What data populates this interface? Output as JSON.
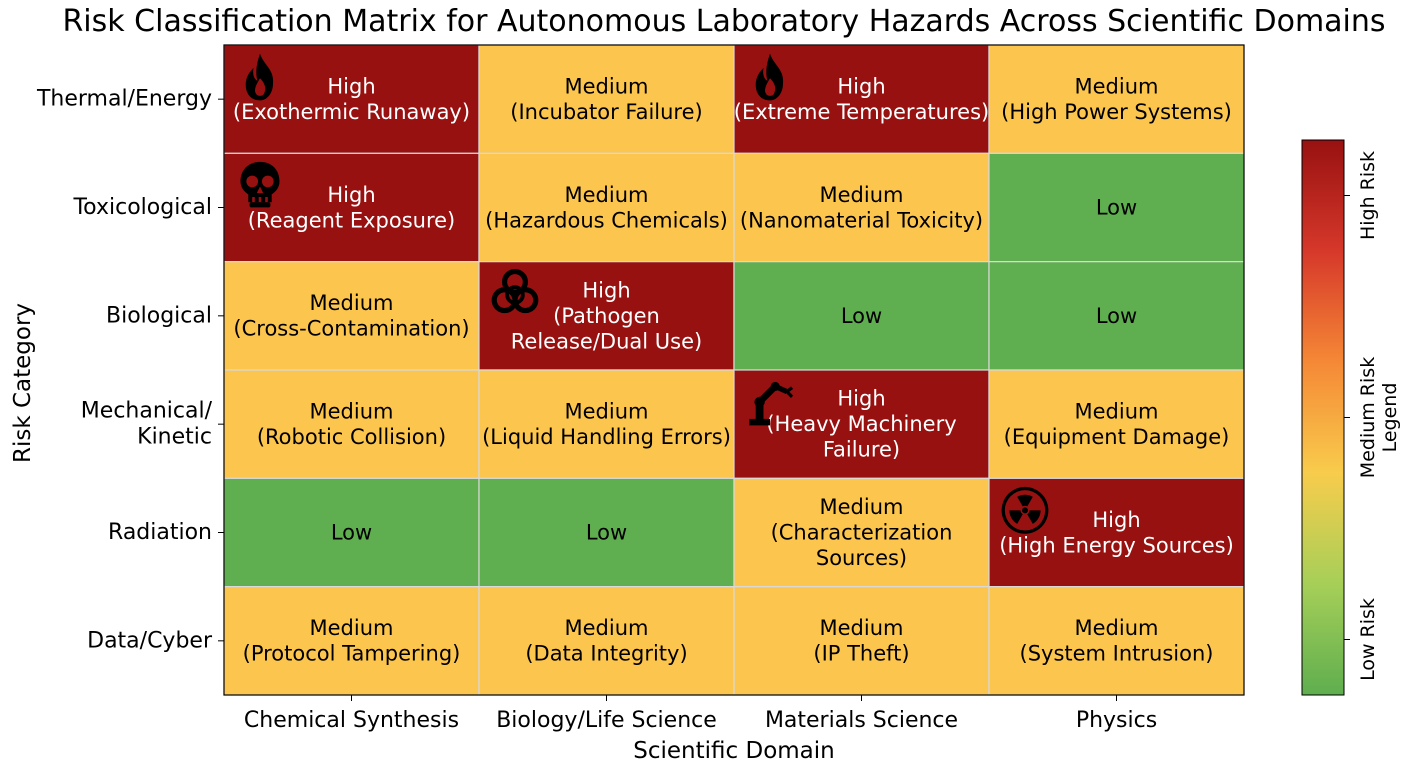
{
  "chart_data": {
    "type": "heatmap",
    "title": "Risk Classification Matrix for Autonomous Laboratory Hazards Across Scientific Domains",
    "xlabel": "Scientific Domain",
    "ylabel": "Risk Category",
    "columns": [
      "Chemical Synthesis",
      "Biology/Life Science",
      "Materials Science",
      "Physics"
    ],
    "rows": [
      "Thermal/Energy",
      "Toxicological",
      "Biological",
      "Mechanical/\nKinetic",
      "Radiation",
      "Data/Cyber"
    ],
    "cells": [
      [
        {
          "level": "High",
          "detail": "(Exothermic Runaway)",
          "icon": "fire-icon"
        },
        {
          "level": "Medium",
          "detail": "(Incubator Failure)"
        },
        {
          "level": "High",
          "detail": "(Extreme Temperatures)",
          "icon": "fire-icon"
        },
        {
          "level": "Medium",
          "detail": "(High Power Systems)"
        }
      ],
      [
        {
          "level": "High",
          "detail": "(Reagent Exposure)",
          "icon": "skull-icon"
        },
        {
          "level": "Medium",
          "detail": "(Hazardous Chemicals)"
        },
        {
          "level": "Medium",
          "detail": "(Nanomaterial Toxicity)"
        },
        {
          "level": "Low",
          "detail": ""
        }
      ],
      [
        {
          "level": "Medium",
          "detail": "(Cross-Contamination)"
        },
        {
          "level": "High",
          "detail": "(Pathogen\nRelease/Dual Use)",
          "icon": "biohazard-icon"
        },
        {
          "level": "Low",
          "detail": ""
        },
        {
          "level": "Low",
          "detail": ""
        }
      ],
      [
        {
          "level": "Medium",
          "detail": "(Robotic Collision)"
        },
        {
          "level": "Medium",
          "detail": "(Liquid Handling Errors)"
        },
        {
          "level": "High",
          "detail": "(Heavy Machinery\nFailure)",
          "icon": "robot-arm-icon"
        },
        {
          "level": "Medium",
          "detail": "(Equipment Damage)"
        }
      ],
      [
        {
          "level": "Low",
          "detail": ""
        },
        {
          "level": "Low",
          "detail": ""
        },
        {
          "level": "Medium",
          "detail": "(Characterization\nSources)"
        },
        {
          "level": "High",
          "detail": "(High Energy Sources)",
          "icon": "radiation-icon"
        }
      ],
      [
        {
          "level": "Medium",
          "detail": "(Protocol Tampering)"
        },
        {
          "level": "Medium",
          "detail": "(Data Integrity)"
        },
        {
          "level": "Medium",
          "detail": "(IP Theft)"
        },
        {
          "level": "Medium",
          "detail": "(System Intrusion)"
        }
      ]
    ],
    "level_colors": {
      "High": "#981111",
      "Medium": "#fbc54e",
      "Low": "#5fae4f"
    },
    "level_text_colors": {
      "High": "#ffffff",
      "Medium": "#000000",
      "Low": "#000000"
    },
    "colorbar": {
      "label": "Legend",
      "ticks": [
        "Low Risk",
        "Medium Risk",
        "High Risk"
      ],
      "tick_values": [
        0.1,
        0.5,
        0.9
      ],
      "gradient": [
        "#5fae4f",
        "#a6cf58",
        "#f8cc4c",
        "#f58836",
        "#d6382a",
        "#981111"
      ]
    },
    "grid": false
  }
}
